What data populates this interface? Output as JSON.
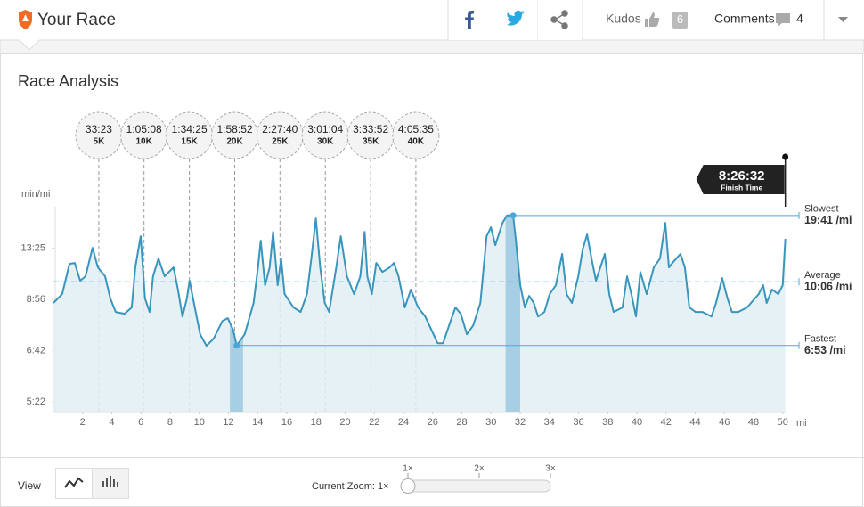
{
  "header": {
    "title": "Your Race",
    "kudos_label": "Kudos",
    "kudos_count": 6,
    "comments_label": "Comments",
    "comments_count": 4
  },
  "section_title": "Race Analysis",
  "chart_data": {
    "type": "line",
    "fill": true,
    "color": "#3a95bd",
    "fill_color": "#e2eef4",
    "y_label": "min/mi",
    "x_unit": "mi",
    "y_scale": "reciprocal",
    "xlim": [
      0,
      50.2
    ],
    "xticks": [
      2,
      4,
      6,
      8,
      10,
      12,
      14,
      16,
      18,
      20,
      22,
      24,
      26,
      28,
      30,
      32,
      34,
      36,
      38,
      40,
      42,
      44,
      46,
      48,
      50
    ],
    "ylim": [
      5.17,
      22.5
    ],
    "yticks": [
      {
        "value": 5.37,
        "label": "5:22"
      },
      {
        "value": 6.7,
        "label": "6:42"
      },
      {
        "value": 8.93,
        "label": "8:56"
      },
      {
        "value": 13.42,
        "label": "13:25"
      }
    ],
    "x": [
      0,
      0.6,
      1.1,
      1.46,
      1.83,
      2.2,
      2.68,
      3.05,
      3.54,
      3.9,
      4.27,
      4.88,
      5.37,
      5.61,
      5.98,
      6.28,
      6.59,
      6.83,
      7.2,
      7.62,
      8.23,
      8.54,
      8.84,
      9.15,
      9.33,
      9.63,
      10.06,
      10.49,
      10.98,
      11.59,
      11.95,
      12.32,
      12.56,
      13.11,
      13.72,
      14.02,
      14.21,
      14.51,
      14.82,
      15.06,
      15.37,
      15.61,
      15.85,
      16.46,
      16.95,
      17.38,
      17.68,
      17.99,
      18.29,
      18.6,
      18.9,
      19.39,
      19.7,
      20.12,
      20.61,
      21.04,
      21.34,
      21.52,
      21.83,
      22.13,
      22.56,
      23.05,
      23.35,
      23.66,
      24.09,
      24.51,
      25.0,
      25.49,
      25.91,
      26.34,
      26.71,
      27.13,
      27.56,
      27.93,
      28.35,
      28.78,
      29.27,
      29.7,
      30.0,
      30.3,
      30.79,
      31.1,
      31.52,
      31.71,
      32.01,
      32.32,
      32.62,
      32.93,
      33.23,
      33.66,
      34.02,
      34.45,
      34.88,
      35.18,
      35.55,
      35.98,
      36.28,
      36.59,
      36.89,
      37.2,
      37.5,
      37.8,
      38.11,
      38.41,
      39.02,
      39.33,
      39.63,
      39.94,
      40.24,
      40.67,
      41.16,
      41.59,
      41.95,
      42.2,
      42.44,
      42.99,
      43.29,
      43.6,
      44.02,
      44.51,
      45.12,
      45.43,
      45.85,
      46.22,
      46.52,
      46.95,
      47.56,
      48.35,
      48.66,
      48.9,
      49.27,
      49.7,
      50.0,
      50.18
    ],
    "values": [
      8.74,
      9.26,
      11.63,
      11.72,
      10.18,
      10.52,
      13.46,
      11.29,
      10.52,
      8.99,
      8.27,
      8.18,
      8.5,
      11.29,
      15.18,
      8.99,
      8.27,
      10.52,
      12.18,
      10.52,
      11.29,
      9.55,
      8.05,
      8.99,
      10.18,
      8.74,
      7.29,
      6.87,
      7.12,
      7.85,
      7.97,
      7.47,
      6.88,
      7.29,
      8.74,
      11.29,
      14.47,
      9.85,
      11.29,
      15.96,
      9.85,
      12.18,
      9.26,
      8.5,
      8.27,
      9.26,
      12.18,
      18.9,
      11.29,
      8.74,
      8.27,
      11.29,
      15.18,
      10.52,
      9.26,
      10.52,
      15.96,
      10.52,
      9.26,
      11.72,
      10.89,
      11.29,
      11.72,
      10.52,
      8.5,
      9.55,
      8.5,
      8.05,
      7.47,
      6.96,
      6.96,
      7.65,
      8.5,
      8.18,
      7.29,
      7.65,
      8.74,
      15.18,
      16.84,
      13.82,
      17.81,
      19.68,
      19.68,
      14.47,
      9.85,
      8.5,
      9.15,
      8.74,
      8.05,
      8.27,
      9.26,
      9.85,
      12.69,
      9.26,
      8.74,
      10.52,
      13.23,
      15.48,
      12.18,
      10.18,
      11.29,
      12.69,
      9.26,
      8.27,
      8.5,
      10.52,
      9.26,
      8.05,
      10.89,
      9.26,
      11.29,
      12.18,
      17.81,
      11.29,
      11.72,
      12.69,
      11.29,
      8.5,
      8.27,
      8.27,
      8.05,
      8.74,
      10.38,
      8.99,
      8.27,
      8.27,
      8.5,
      9.26,
      9.85,
      8.74,
      9.55,
      9.26,
      9.85,
      14.74
    ],
    "highlights": [
      [
        12.1,
        13.0
      ],
      [
        31.0,
        32.0
      ]
    ],
    "annotations": [
      {
        "label": "Slowest",
        "value": 19.68,
        "value_label": "19:41 /mi",
        "mile": 31.52
      },
      {
        "label": "Average",
        "value": 10.1,
        "value_label": "10:06 /mi"
      },
      {
        "label": "Fastest",
        "value": 6.88,
        "value_label": "6:53 /mi",
        "mile": 12.56
      }
    ],
    "splits": [
      {
        "time": "33:23",
        "label": "5K",
        "mile": 3.11
      },
      {
        "time": "1:05:08",
        "label": "10K",
        "mile": 6.21
      },
      {
        "time": "1:34:25",
        "label": "15K",
        "mile": 9.32
      },
      {
        "time": "1:58:52",
        "label": "20K",
        "mile": 12.43
      },
      {
        "time": "2:27:40",
        "label": "25K",
        "mile": 15.53
      },
      {
        "time": "3:01:04",
        "label": "30K",
        "mile": 18.64
      },
      {
        "time": "3:33:52",
        "label": "35K",
        "mile": 21.75
      },
      {
        "time": "4:05:35",
        "label": "40K",
        "mile": 24.85
      }
    ],
    "finish": {
      "time": "8:26:32",
      "label": "Finish Time",
      "mile": 50.18
    }
  },
  "footer": {
    "view_label": "View",
    "zoom_label": "Current Zoom: 1×",
    "zoom_levels": [
      "1×",
      "2×",
      "3×"
    ]
  }
}
